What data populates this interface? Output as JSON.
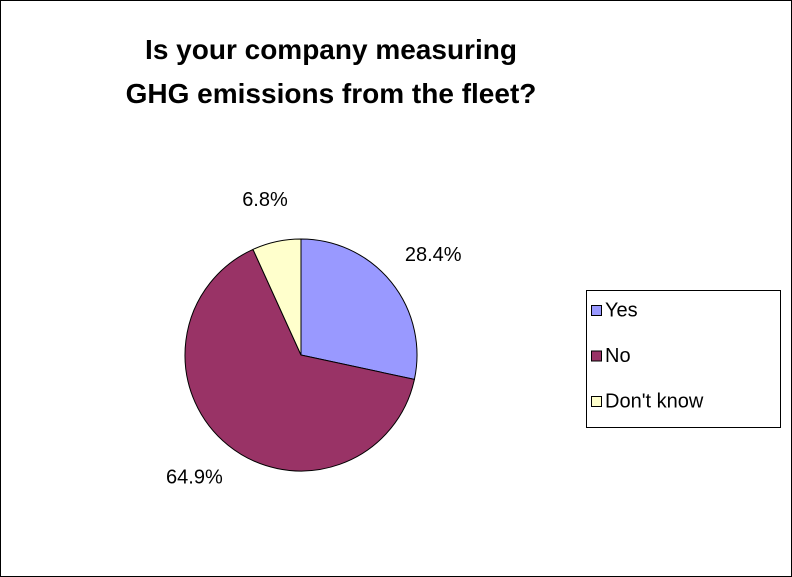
{
  "chart_data": {
    "type": "pie",
    "title": "Is your company measuring GHG emissions from the fleet?",
    "categories": [
      "Yes",
      "No",
      "Don't know"
    ],
    "values": [
      28.4,
      64.9,
      6.8
    ],
    "value_labels": [
      "28.4%",
      "64.9%",
      "6.8%"
    ],
    "colors": [
      "#9999ff",
      "#993366",
      "#ffffcc"
    ],
    "legend": "right"
  }
}
